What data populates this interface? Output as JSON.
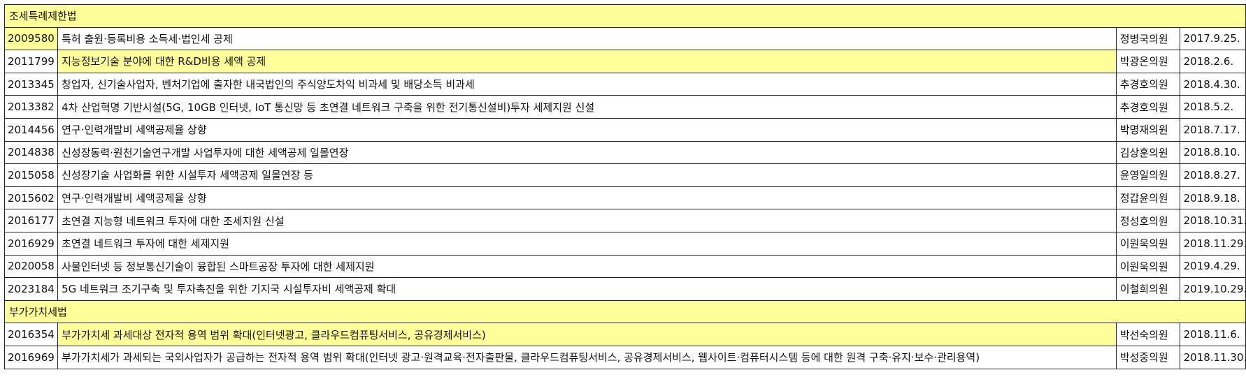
{
  "sections": [
    {
      "title": "조세특례제한법",
      "rows": [
        {
          "num": "2009580",
          "title": "특허 출원·등록비용 소득세·법인세 공제",
          "person": "정병국의원",
          "date": "2017.9.25.",
          "num_hl": true,
          "title_hl": false
        },
        {
          "num": "2011799",
          "title": "지능정보기술 분야에 대한 R&D비용 세액 공제",
          "person": "박광온의원",
          "date": "2018.2.6.",
          "num_hl": false,
          "title_hl": true
        },
        {
          "num": "2013345",
          "title": "창업자, 신기술사업자, 벤처기업에 출자한 내국법인의 주식양도차익 비과세 및 배당소득 비과세",
          "person": "추경호의원",
          "date": "2018.4.30.",
          "num_hl": false,
          "title_hl": false
        },
        {
          "num": "2013382",
          "title": "4차 산업혁명 기반시설(5G, 10GB 인터넷, IoT 통신망 등 초연결 네트워크 구축을 위한 전기통신설비)투자 세제지원 신설",
          "person": "추경호의원",
          "date": "2018.5.2.",
          "num_hl": false,
          "title_hl": false
        },
        {
          "num": "2014456",
          "title": "연구·인력개발비 세액공제율 상향",
          "person": "박명재의원",
          "date": "2018.7.17.",
          "num_hl": false,
          "title_hl": false
        },
        {
          "num": "2014838",
          "title": "신성장동력·원천기술연구개발 사업투자에 대한 세액공제 일몰연장",
          "person": "김상훈의원",
          "date": "2018.8.10.",
          "num_hl": false,
          "title_hl": false
        },
        {
          "num": "2015058",
          "title": "신성장기술 사업화를 위한 시설투자 세액공제 일몰연장 등",
          "person": "윤영일의원",
          "date": "2018.8.27.",
          "num_hl": false,
          "title_hl": false
        },
        {
          "num": "2015602",
          "title": "연구·인력개발비 세액공제율 상향",
          "person": "정갑윤의원",
          "date": "2018.9.18.",
          "num_hl": false,
          "title_hl": false
        },
        {
          "num": "2016177",
          "title": "초연결 지능형 네트워크 투자에 대한 조세지원 신설",
          "person": "정성호의원",
          "date": "2018.10.31.",
          "num_hl": false,
          "title_hl": false
        },
        {
          "num": "2016929",
          "title": "초연결 네트워크 투자에 대한 세제지원",
          "person": "이원욱의원",
          "date": "2018.11.29.",
          "num_hl": false,
          "title_hl": false
        },
        {
          "num": "2020058",
          "title": "사물인터넷 등 정보통신기술이 융합된 스마트공장 투자에 대한 세제지원",
          "person": "이원욱의원",
          "date": "2019.4.29.",
          "num_hl": false,
          "title_hl": false
        },
        {
          "num": "2023184",
          "title": "5G 네트워크 조기구축 및 투자촉진을 위한 기지국 시설투자비 세액공제 확대",
          "person": "이철희의원",
          "date": "2019.10.29.",
          "num_hl": false,
          "title_hl": false
        }
      ]
    },
    {
      "title": "부가가치세법",
      "rows": [
        {
          "num": "2016354",
          "title": "부가가치세 과세대상 전자적 용역 범위 확대(인터넷광고, 클라우드컴퓨팅서비스, 공유경제서비스)",
          "person": "박선숙의원",
          "date": "2018.11.6.",
          "num_hl": false,
          "title_hl": true
        },
        {
          "num": "2016969",
          "title": "부가가치세가 과세되는 국외사업자가 공급하는 전자적 용역 범위 확대(인터넷 광고·원격교육·전자출판물, 클라우드컴퓨팅서비스, 공유경제서비스, 웹사이트·컴퓨터시스템 등에 대한 원격 구축·유지·보수·관리용역)",
          "person": "박성중의원",
          "date": "2018.11.30.",
          "num_hl": false,
          "title_hl": false
        }
      ]
    }
  ],
  "colors": {
    "highlight": "#ffff99",
    "border": "#222222",
    "text": "#111111"
  }
}
